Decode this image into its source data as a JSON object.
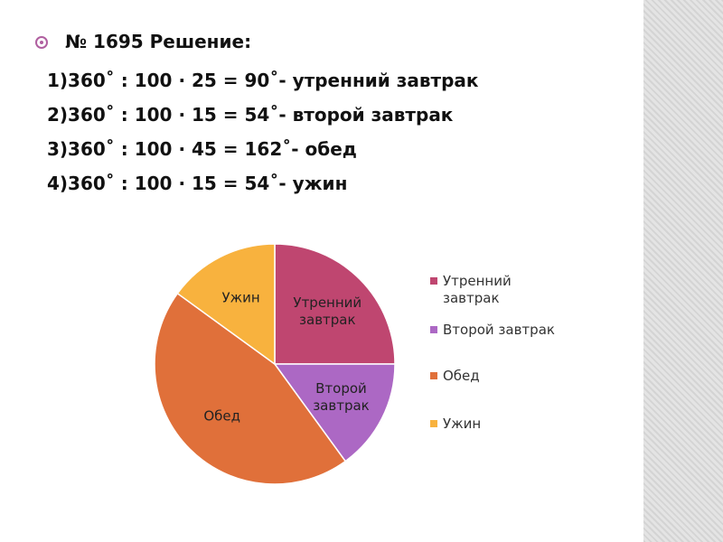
{
  "slide": {
    "title": "№ 1695 Решение:",
    "lines": [
      "1)360˚ : 100 · 25 = 90˚- утренний завтрак",
      "2)360˚ : 100 · 15 = 54˚- второй завтрак",
      "3)360˚ : 100 · 45 = 162˚- обед",
      "4)360˚ : 100 · 15 = 54˚- ужин"
    ]
  },
  "chart_data": {
    "type": "pie",
    "categories": [
      "Утренний завтрак",
      "Второй завтрак",
      "Обед",
      "Ужин"
    ],
    "values": [
      25,
      15,
      45,
      15
    ],
    "colors": [
      "#bf4670",
      "#ac68c4",
      "#e0703a",
      "#f8b23e"
    ],
    "legend": "right"
  }
}
